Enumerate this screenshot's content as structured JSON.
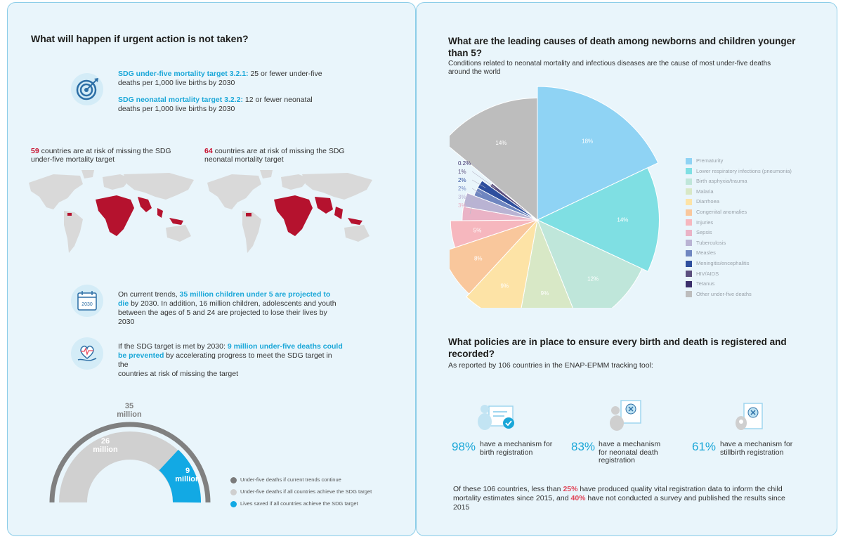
{
  "left": {
    "heading": "What will happen if urgent action is not taken?",
    "target1_title": "SDG under-five mortality target 3.2.1:",
    "target1_text_a": " 25 or fewer under-five",
    "target1_text_b": "deaths per 1,000 live births by 2030",
    "target2_title": "SDG neonatal mortality target 3.2.2:",
    "target2_text_a": " 12 or fewer neonatal",
    "target2_text_b": "deaths per 1,000 live births by 2030",
    "map1_count": "59",
    "map1_text_a": " countries are at risk of missing the SDG",
    "map1_text_b": "under-five mortality target",
    "map2_count": "64",
    "map2_text_a": " countries are at risk of missing the SDG",
    "map2_text_b": "neonatal mortality target",
    "calendar_year": "2030",
    "trend_a": "On current trends, ",
    "trend_hl_a": "35 million children under 5 are projected to",
    "trend_hl_b": "die",
    "trend_b": " by 2030. In addition, 16 million children, adolescents and youth",
    "trend_c": "between the ages of 5 and 24 are projected to lose their lives by 2030",
    "met_a": "If the SDG target is met by 2030: ",
    "met_hl_a": "9 million under-five deaths could",
    "met_hl_b": "be prevented",
    "met_b": " by accelerating progress to meet the SDG target in the",
    "met_c": "countries at risk of missing the target",
    "gauge": {
      "outer_value": "35",
      "outer_unit": "million",
      "inner_value": "26",
      "inner_unit": "million",
      "saved_value": "9",
      "saved_unit": "million",
      "legend": [
        {
          "label": "Under-five deaths if current trends continue",
          "color": "#7b7b7b"
        },
        {
          "label": "Under-five deaths if all countries achieve the SDG target",
          "color": "#cfcfcf"
        },
        {
          "label": "Lives saved if all countries achieve the SDG target",
          "color": "#12a9e4"
        }
      ]
    }
  },
  "right": {
    "heading_a": "What are the leading causes of death among newborns and children younger",
    "heading_b": "than 5?",
    "subheading_a": "Conditions related to neonatal mortality and infectious diseases are the cause of most under-five deaths",
    "subheading_b": "around the world",
    "policy_heading_a": "What policies are in place to ensure every birth and death is registered and",
    "policy_heading_b": "recorded?",
    "policy_sub": "As reported by 106 countries in the ENAP-EPMM tracking tool:",
    "policies": [
      {
        "pct": "98%",
        "text_a": "have a mechanism for",
        "text_b": "birth registration",
        "text_c": ""
      },
      {
        "pct": "83%",
        "text_a": "have a mechanism",
        "text_b": "for neonatal death",
        "text_c": "registration"
      },
      {
        "pct": "61%",
        "text_a": "have a mechanism for",
        "text_b": "stillbirth registration",
        "text_c": ""
      }
    ],
    "footer_a": "Of these 106 countries, less than ",
    "footer_hl_a": "25%",
    "footer_b": " have produced quality vital registration data to inform the child",
    "footer_c": "mortality estimates since 2015, and ",
    "footer_hl_b": "40%",
    "footer_d": " have not conducted a survey and published the results since",
    "footer_e": "2015"
  },
  "chart_data": {
    "type": "pie",
    "title": "Leading causes of death among newborns and children younger than 5",
    "categories": [
      "Prematurity",
      "Lower respiratory infections (pneumonia)",
      "Birth asphyxia/trauma",
      "Malaria",
      "Diarrhoea",
      "Congenital anomalies",
      "Injuries",
      "Sepsis",
      "Tuberculosis",
      "Measles",
      "Meningitis/encephalitis",
      "HIV/AIDS",
      "Tetanus",
      "Other under-five deaths"
    ],
    "values": [
      18,
      14,
      12,
      9,
      9,
      8,
      5,
      3,
      3,
      2,
      2,
      1,
      0.2,
      14
    ],
    "labels": [
      "18%",
      "14%",
      "12%",
      "9%",
      "9%",
      "8%",
      "5%",
      "3%",
      "3%",
      "2%",
      "2%",
      "1%",
      "0.2%",
      "14%"
    ],
    "colors": [
      "#8fd3f4",
      "#7fdfe3",
      "#bfe6da",
      "#d8e8c6",
      "#fde3a6",
      "#f9c79c",
      "#f6b7be",
      "#eab3c6",
      "#b9b3d3",
      "#6f86c0",
      "#2e4f9e",
      "#5b4f7e",
      "#3b2f6b",
      "#bdbdbd"
    ],
    "legend_position": "right"
  }
}
